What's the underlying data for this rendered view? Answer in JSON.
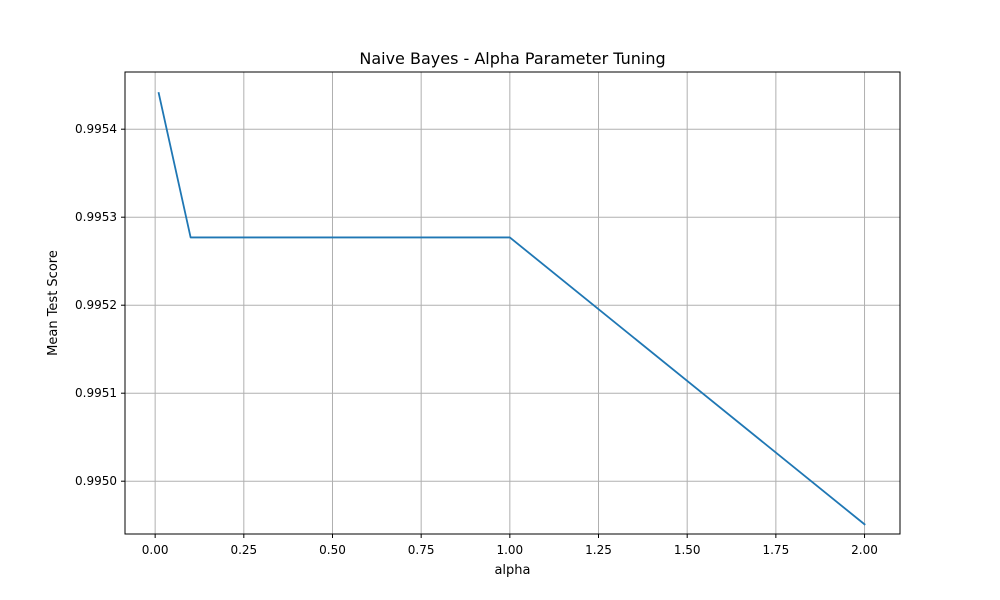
{
  "chart_data": {
    "type": "line",
    "title": "Naive Bayes - Alpha Parameter Tuning",
    "xlabel": "alpha",
    "ylabel": "Mean Test Score",
    "xlim": [
      -0.085,
      2.1
    ],
    "ylim": [
      0.99494,
      0.995465
    ],
    "grid": true,
    "xticks": [
      0.0,
      0.25,
      0.5,
      0.75,
      1.0,
      1.25,
      1.5,
      1.75,
      2.0
    ],
    "xtick_labels": [
      "0.00",
      "0.25",
      "0.50",
      "0.75",
      "1.00",
      "1.25",
      "1.50",
      "1.75",
      "2.00"
    ],
    "yticks": [
      0.995,
      0.9951,
      0.9952,
      0.9953,
      0.9954
    ],
    "ytick_labels": [
      "0.9950",
      "0.9951",
      "0.9952",
      "0.9953",
      "0.9954"
    ],
    "series": [
      {
        "color": "#1f77b4",
        "x": [
          0.01,
          0.1,
          1.0,
          2.0
        ],
        "y": [
          0.995441,
          0.995277,
          0.995277,
          0.994951
        ]
      }
    ]
  }
}
